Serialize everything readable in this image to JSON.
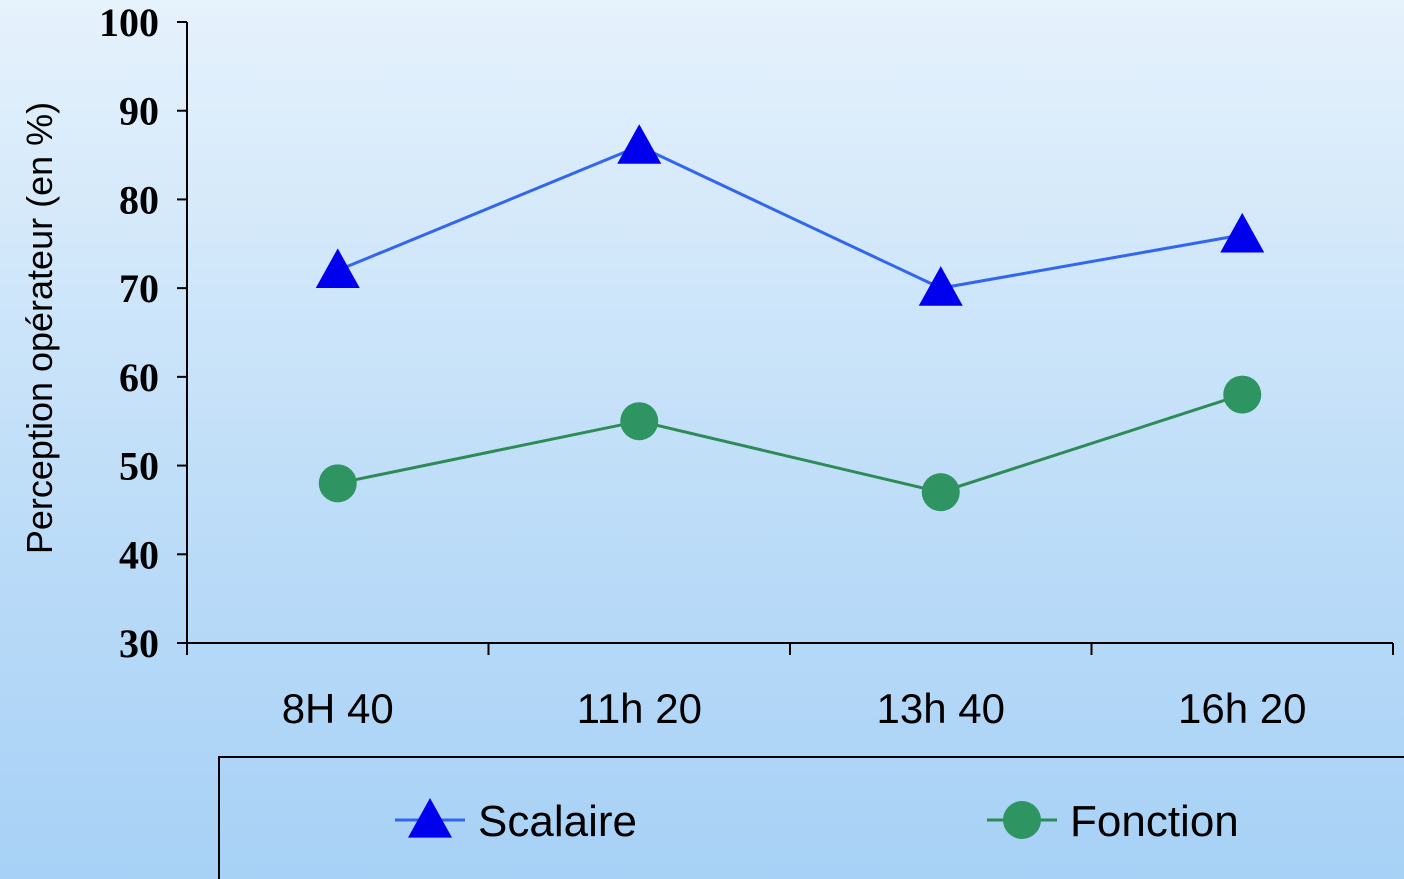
{
  "chart_data": {
    "type": "line",
    "title": "",
    "xlabel": "",
    "ylabel": "Perception opérateur (en %)",
    "categories": [
      "8H 40",
      "11h 20",
      "13h 40",
      "16h 20"
    ],
    "ylim": [
      30,
      100
    ],
    "yticks": [
      30,
      40,
      50,
      60,
      70,
      80,
      90,
      100
    ],
    "grid": false,
    "legend_position": "bottom",
    "series": [
      {
        "name": "Scalaire",
        "values": [
          72,
          86,
          70,
          76
        ],
        "color": "#3366ee",
        "marker_color": "#0000ee",
        "marker": "triangle"
      },
      {
        "name": "Fonction",
        "values": [
          48,
          55,
          47,
          58
        ],
        "color": "#2e8b57",
        "marker_color": "#2e9461",
        "marker": "circle"
      }
    ]
  }
}
